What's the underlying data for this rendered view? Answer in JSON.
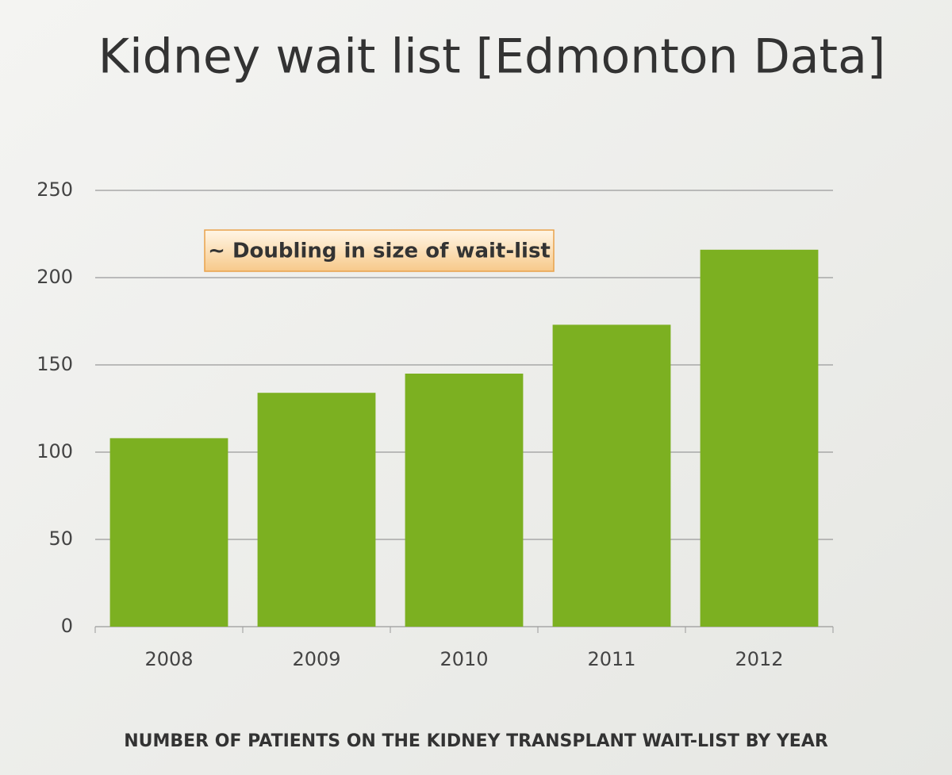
{
  "chart_data": {
    "type": "bar",
    "title": "Kidney wait list [Edmonton Data]",
    "annotation": "~ Doubling in size of wait-list",
    "x_label": "NUMBER OF PATIENTS ON THE KIDNEY TRANSPLANT WAIT-LIST BY YEAR",
    "categories": [
      "2008",
      "2009",
      "2010",
      "2011",
      "2012"
    ],
    "values": [
      108,
      134,
      145,
      173,
      216
    ],
    "color": "#7cb021",
    "ylim": [
      0,
      250
    ],
    "yticks": [
      0,
      50,
      100,
      150,
      200,
      250
    ],
    "grid": true
  }
}
